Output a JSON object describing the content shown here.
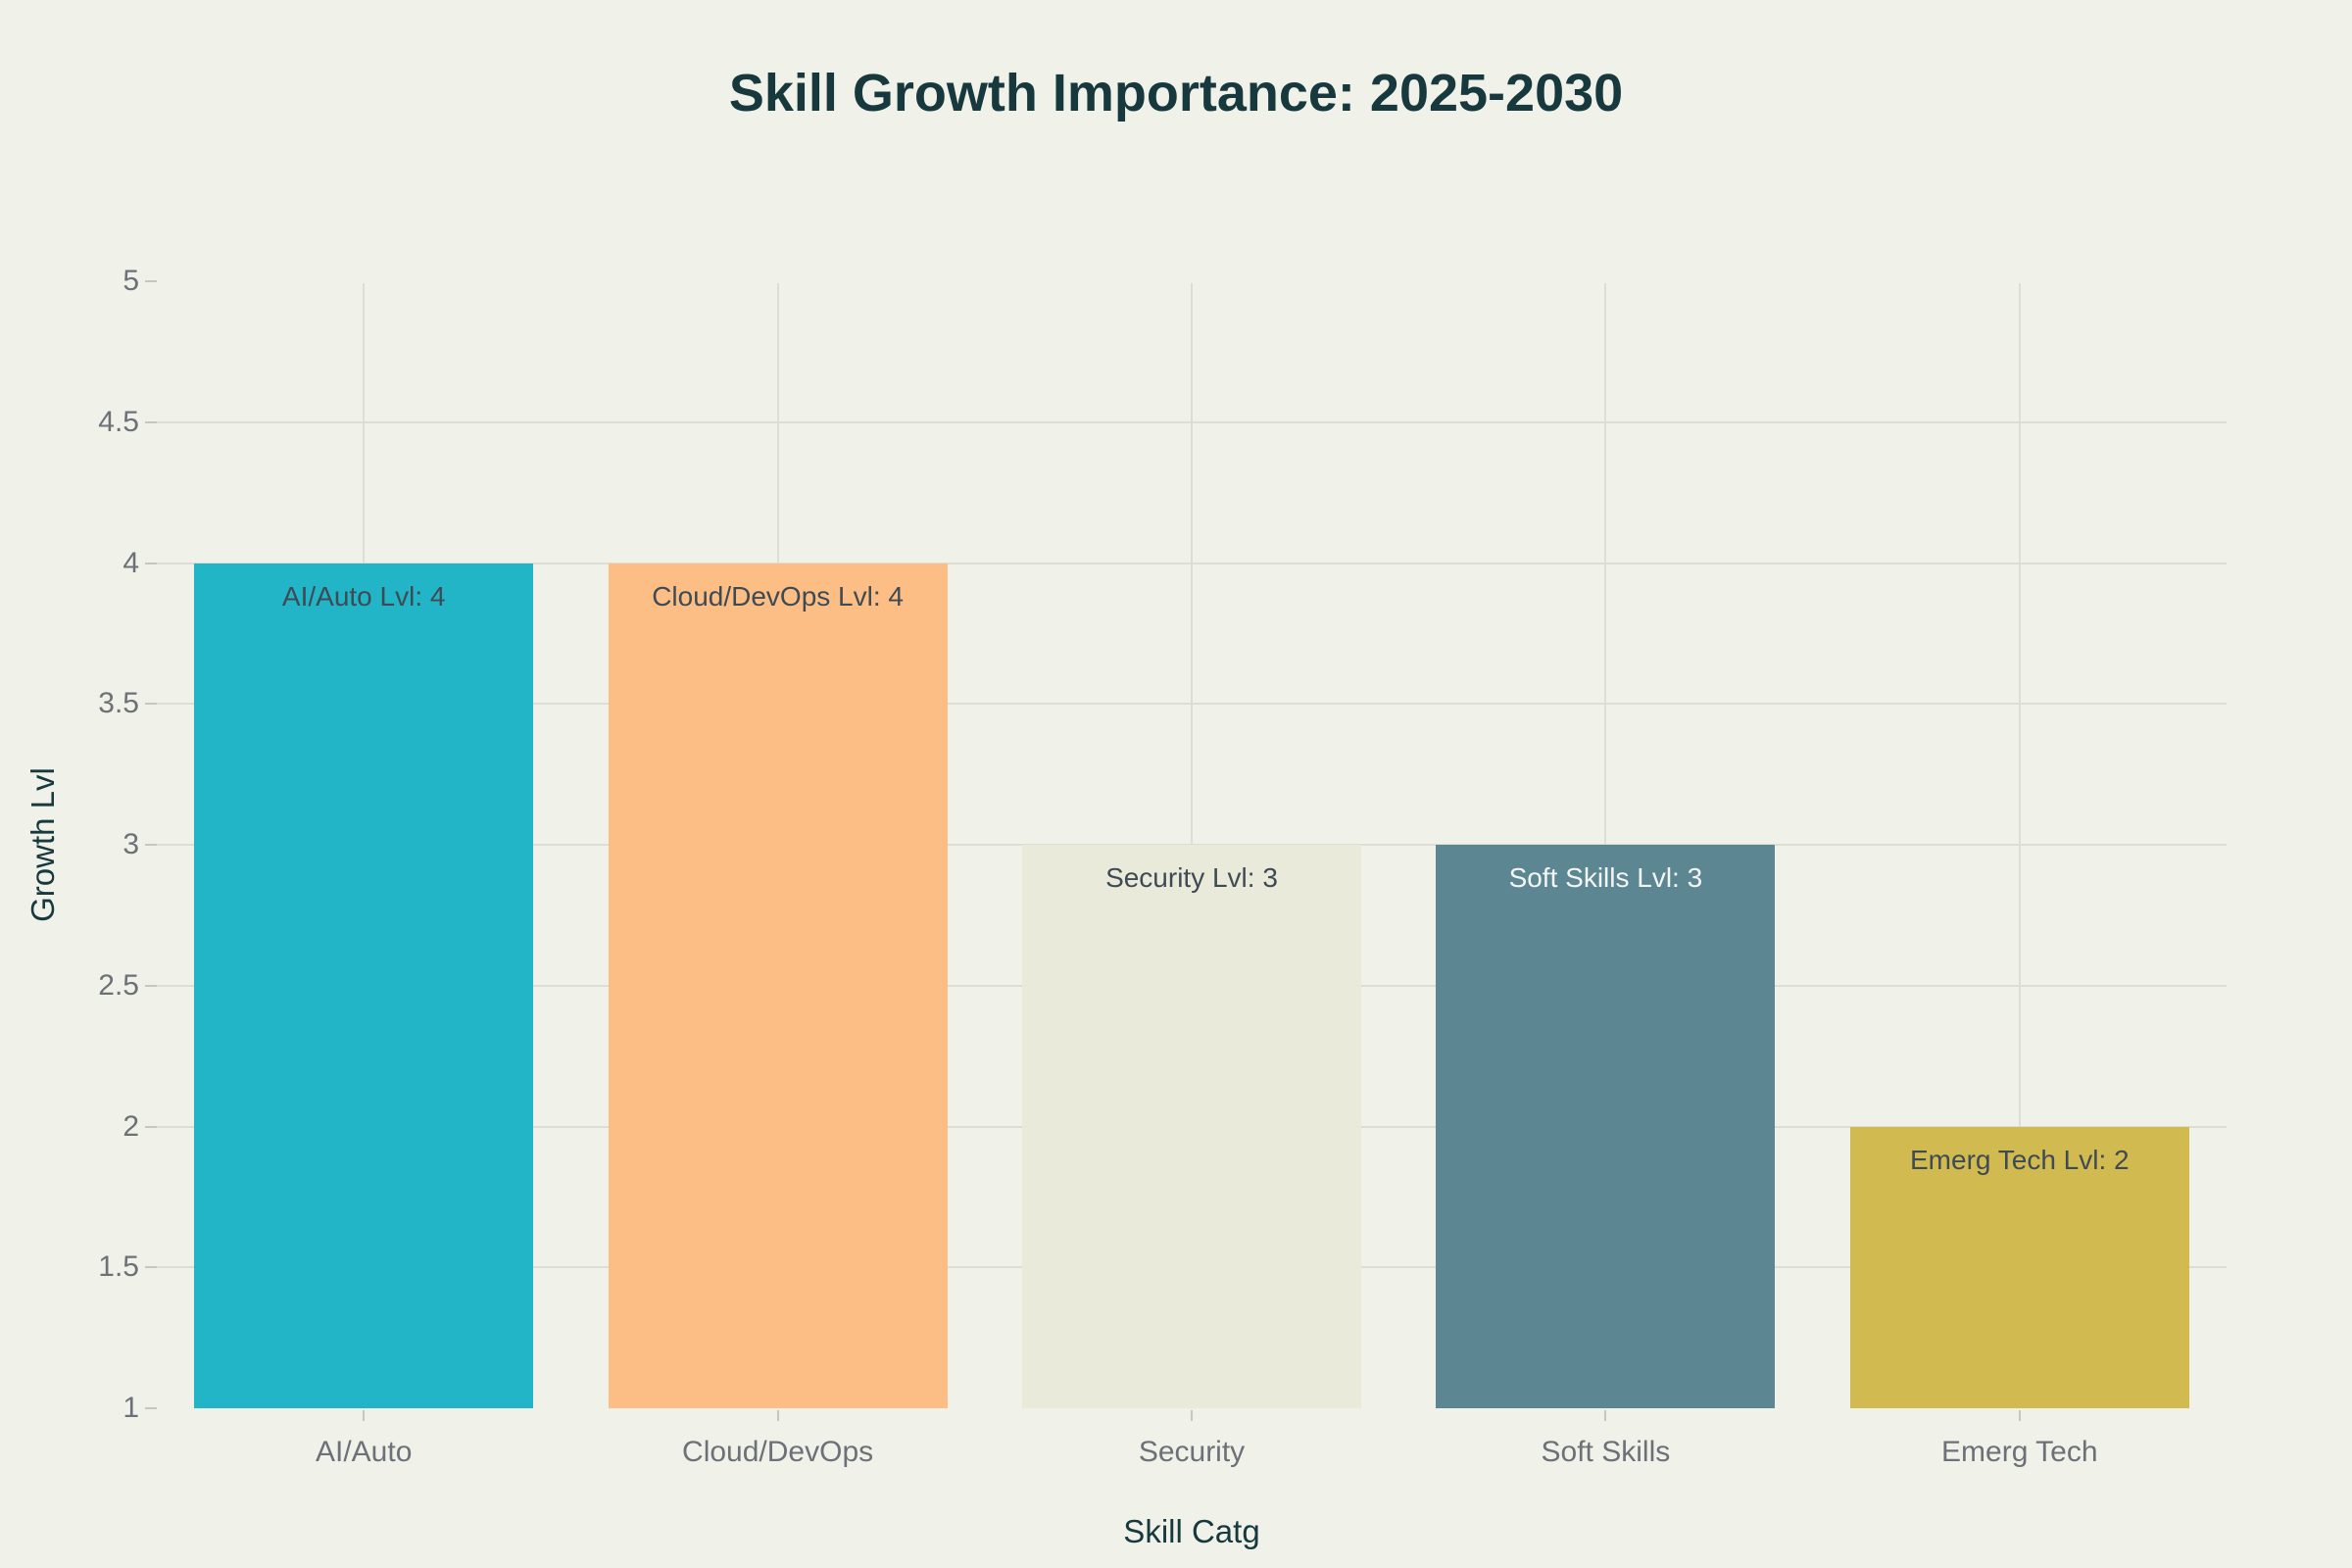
{
  "chart_data": {
    "type": "bar",
    "title": "Skill Growth Importance: 2025-2030",
    "xlabel": "Skill Catg",
    "ylabel": "Growth Lvl",
    "categories": [
      "AI/Auto",
      "Cloud/DevOps",
      "Security",
      "Soft Skills",
      "Emerg Tech"
    ],
    "values": [
      4,
      4,
      3,
      3,
      2
    ],
    "bar_base": 1,
    "bar_labels": [
      "AI/Auto Lvl: 4",
      "Cloud/DevOps Lvl: 4",
      "Security Lvl: 3",
      "Soft Skills Lvl: 3",
      "Emerg Tech Lvl: 2"
    ],
    "bar_colors": [
      "#22b5c8",
      "#fdbe85",
      "#eaeada",
      "#5c8692",
      "#d1ba50"
    ],
    "bar_label_colors": [
      "#3e4b55",
      "#3e4b55",
      "#3e4b55",
      "#f3f6f6",
      "#3e4b55"
    ],
    "ylim": [
      1,
      5
    ],
    "yticks": [
      1,
      1.5,
      2,
      2.5,
      3,
      3.5,
      4,
      4.5,
      5
    ],
    "grid": true,
    "legend": "none"
  },
  "colors": {
    "background": "#f0f1e9",
    "gridline": "#dcddd4",
    "tick_mark": "#c6c7bf",
    "tick_label": "#6b7177",
    "title": "#17393e",
    "axis_title": "#17393e"
  }
}
